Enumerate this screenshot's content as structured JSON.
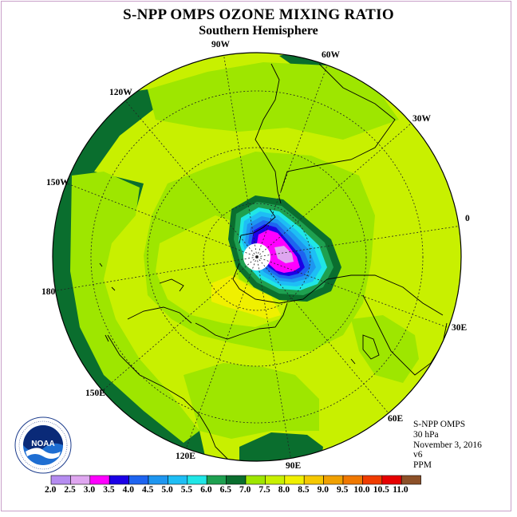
{
  "title": "S-NPP OMPS OZONE MIXING RATIO",
  "subtitle": "Southern Hemisphere",
  "longitude_labels": [
    "90W",
    "60W",
    "30W",
    "0",
    "30E",
    "60E",
    "90E",
    "120E",
    "150E",
    "180",
    "150W",
    "120W"
  ],
  "info": {
    "instrument": "S-NPP OMPS",
    "level": "30 hPa",
    "date": "November 3, 2016",
    "version": "v6",
    "units": "PPM"
  },
  "logo": {
    "text": "NOAA",
    "ring_text": "NATIONAL OCEANIC AND ATMOSPHERIC ADMINISTRATION · U.S. DEPARTMENT OF COMMERCE"
  },
  "colorbar": {
    "ticks": [
      "2.0",
      "2.5",
      "3.0",
      "3.5",
      "4.0",
      "4.5",
      "5.0",
      "5.5",
      "6.0",
      "6.5",
      "7.0",
      "7.5",
      "8.0",
      "8.5",
      "9.0",
      "9.5",
      "10.0",
      "10.5",
      "11.0"
    ],
    "colors": [
      "#b58cf0",
      "#dfa6f0",
      "#ff00ff",
      "#1c00e6",
      "#1e64f0",
      "#1e96f0",
      "#1ebef5",
      "#20e6e6",
      "#1ea050",
      "#0a6e2e",
      "#9ee600",
      "#c8f000",
      "#f0f000",
      "#f5c800",
      "#f0a000",
      "#f07800",
      "#f03c00",
      "#e60000",
      "#8c5028"
    ]
  },
  "map_colors": {
    "background_disk": "#c8f000",
    "band_7": "#9ee600",
    "band_65": "#0a6e2e",
    "band_8": "#f0f000",
    "pole": "#ffffff"
  }
}
